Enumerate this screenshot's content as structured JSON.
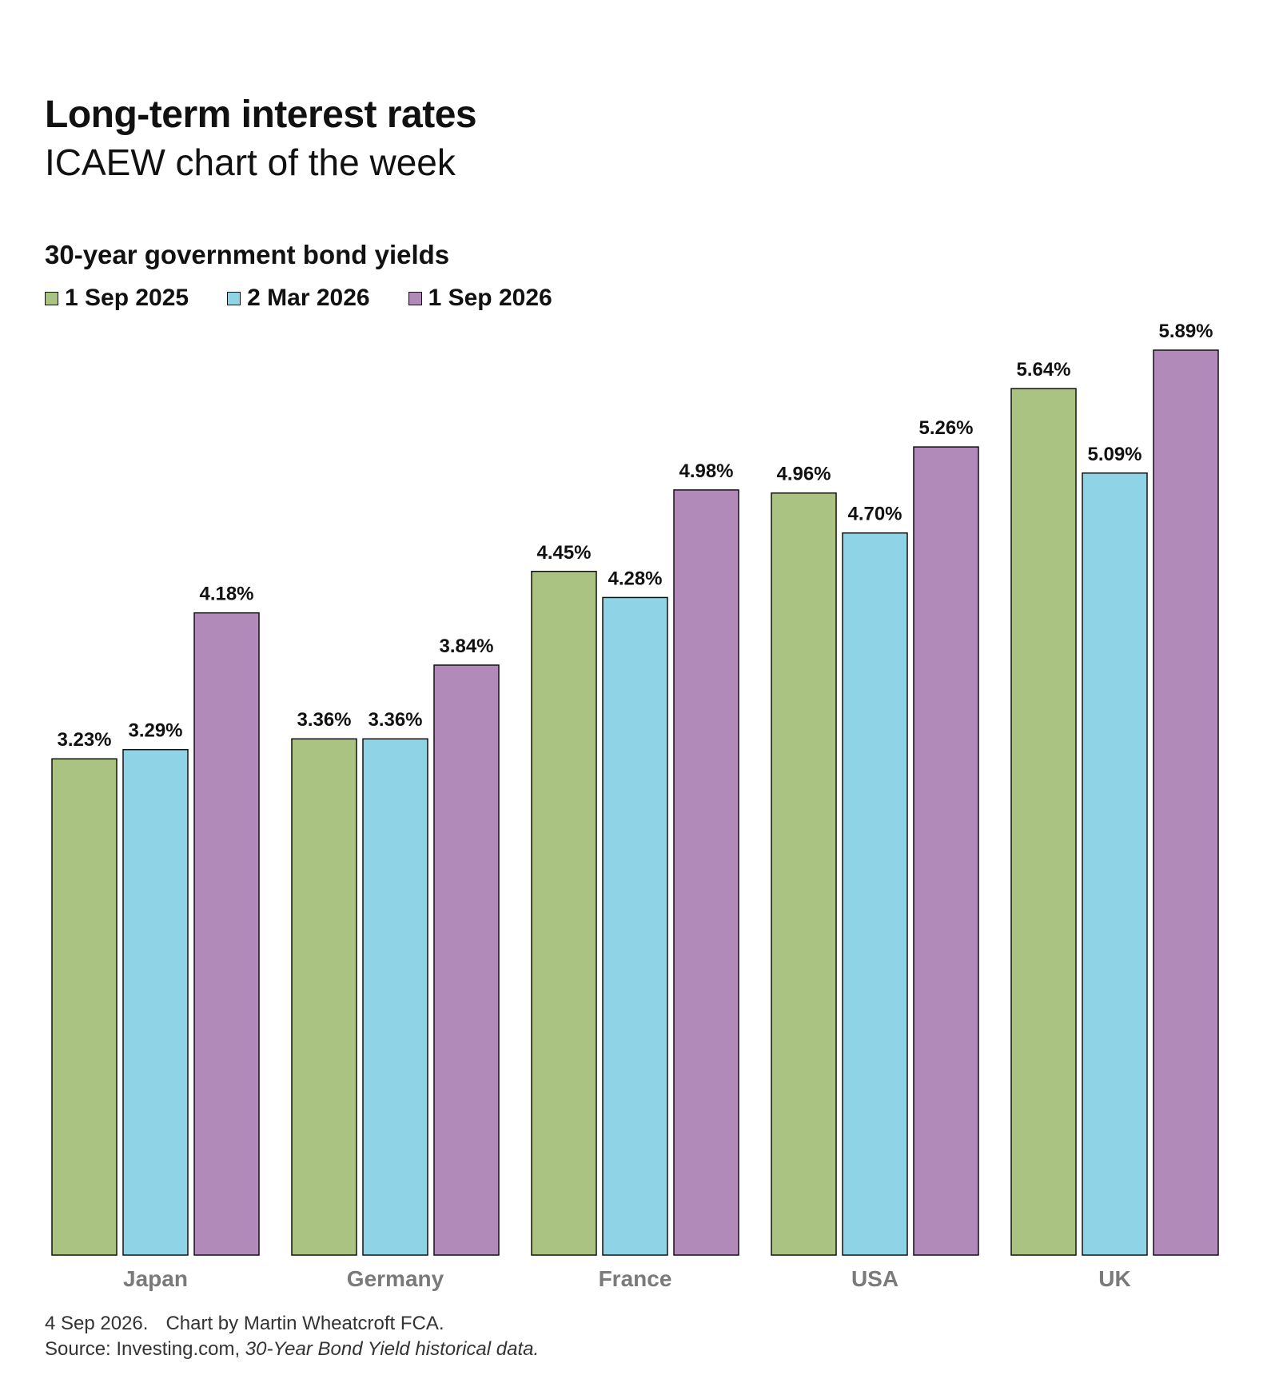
{
  "header": {
    "title": "Long-term interest rates",
    "subtitle": "ICAEW chart of the week"
  },
  "footer": {
    "date": "4 Sep 2026.",
    "credit": "Chart by Martin Wheatcroft FCA.",
    "source_prefix": "Source: Investing.com,",
    "source_title": "30-Year Bond Yield historical data."
  },
  "chart_data": {
    "type": "bar",
    "title": "30-year government bond yields",
    "xlabel": "",
    "ylabel": "",
    "categories": [
      "Japan",
      "Germany",
      "France",
      "USA",
      "UK"
    ],
    "series": [
      {
        "name": "1 Sep 2025",
        "color": "#abc382",
        "values": [
          3.23,
          3.36,
          4.45,
          4.96,
          5.64
        ],
        "labels": [
          "3.23%",
          "3.36%",
          "4.45%",
          "4.96%",
          "5.64%"
        ]
      },
      {
        "name": "2 Mar 2026",
        "color": "#8fd3e6",
        "values": [
          3.29,
          3.36,
          4.28,
          4.7,
          5.09
        ],
        "labels": [
          "3.29%",
          "3.36%",
          "4.28%",
          "4.70%",
          "5.09%"
        ]
      },
      {
        "name": "1 Sep 2026",
        "color": "#b28aba",
        "values": [
          4.18,
          3.84,
          4.98,
          5.26,
          5.89
        ],
        "labels": [
          "4.18%",
          "3.84%",
          "4.98%",
          "5.26%",
          "5.89%"
        ]
      }
    ],
    "ylim": [
      0,
      5.89
    ],
    "grid": false,
    "legend_position": "top-left",
    "axis_label_color": "#7a7a7a"
  }
}
